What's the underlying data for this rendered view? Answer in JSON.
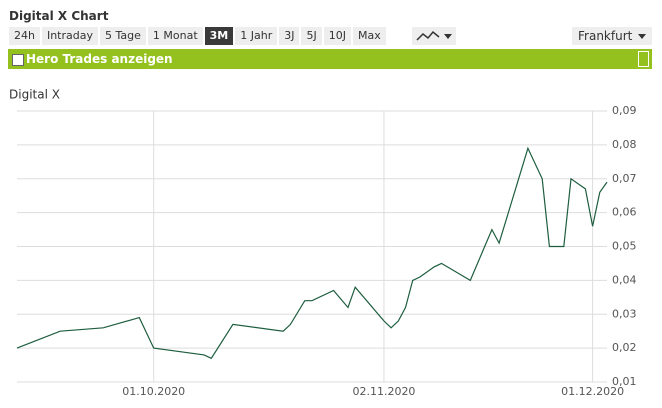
{
  "header": {
    "title": "Digital X Chart"
  },
  "tabs": [
    "24h",
    "Intraday",
    "5 Tage",
    "1 Monat",
    "3M",
    "1 Jahr",
    "3J",
    "5J",
    "10J",
    "Max"
  ],
  "exchange": "Frankfurt",
  "hero_bar": {
    "label": "Hero Trades anzeigen"
  },
  "chart_data": {
    "type": "line",
    "title": "Digital X",
    "color": "#1e5e3f",
    "x": [
      "2020-09-12",
      "2020-09-18",
      "2020-09-24",
      "2020-09-29",
      "2020-10-01",
      "2020-10-08",
      "2020-10-09",
      "2020-10-12",
      "2020-10-19",
      "2020-10-20",
      "2020-10-22",
      "2020-10-23",
      "2020-10-26",
      "2020-10-28",
      "2020-10-29",
      "2020-11-02",
      "2020-11-03",
      "2020-11-04",
      "2020-11-05",
      "2020-11-06",
      "2020-11-07",
      "2020-11-09",
      "2020-11-10",
      "2020-11-14",
      "2020-11-16",
      "2020-11-17",
      "2020-11-18",
      "2020-11-22",
      "2020-11-24",
      "2020-11-25",
      "2020-11-27",
      "2020-11-28",
      "2020-11-30",
      "2020-12-01",
      "2020-12-02",
      "2020-12-03"
    ],
    "values": [
      0.02,
      0.025,
      0.026,
      0.029,
      0.02,
      0.018,
      0.017,
      0.027,
      0.025,
      0.027,
      0.034,
      0.034,
      0.037,
      0.032,
      0.038,
      0.028,
      0.026,
      0.028,
      0.032,
      0.04,
      0.041,
      0.044,
      0.045,
      0.04,
      0.05,
      0.055,
      0.051,
      0.079,
      0.07,
      0.05,
      0.05,
      0.07,
      0.067,
      0.056,
      0.066,
      0.069
    ],
    "xlim": [
      "2020-09-12",
      "2020-12-03"
    ],
    "xticks": [
      {
        "value": "2020-10-01",
        "label": "01.10.2020"
      },
      {
        "value": "2020-11-02",
        "label": "02.11.2020"
      },
      {
        "value": "2020-12-01",
        "label": "01.12.2020"
      }
    ],
    "ylim": [
      0.01,
      0.09
    ],
    "yticks": [
      {
        "value": 0.01,
        "label": "0,01"
      },
      {
        "value": 0.02,
        "label": "0,02"
      },
      {
        "value": 0.03,
        "label": "0,03"
      },
      {
        "value": 0.04,
        "label": "0,04"
      },
      {
        "value": 0.05,
        "label": "0,05"
      },
      {
        "value": 0.06,
        "label": "0,06"
      },
      {
        "value": 0.07,
        "label": "0,07"
      },
      {
        "value": 0.08,
        "label": "0,08"
      },
      {
        "value": 0.09,
        "label": "0,09"
      }
    ],
    "grid": true
  }
}
